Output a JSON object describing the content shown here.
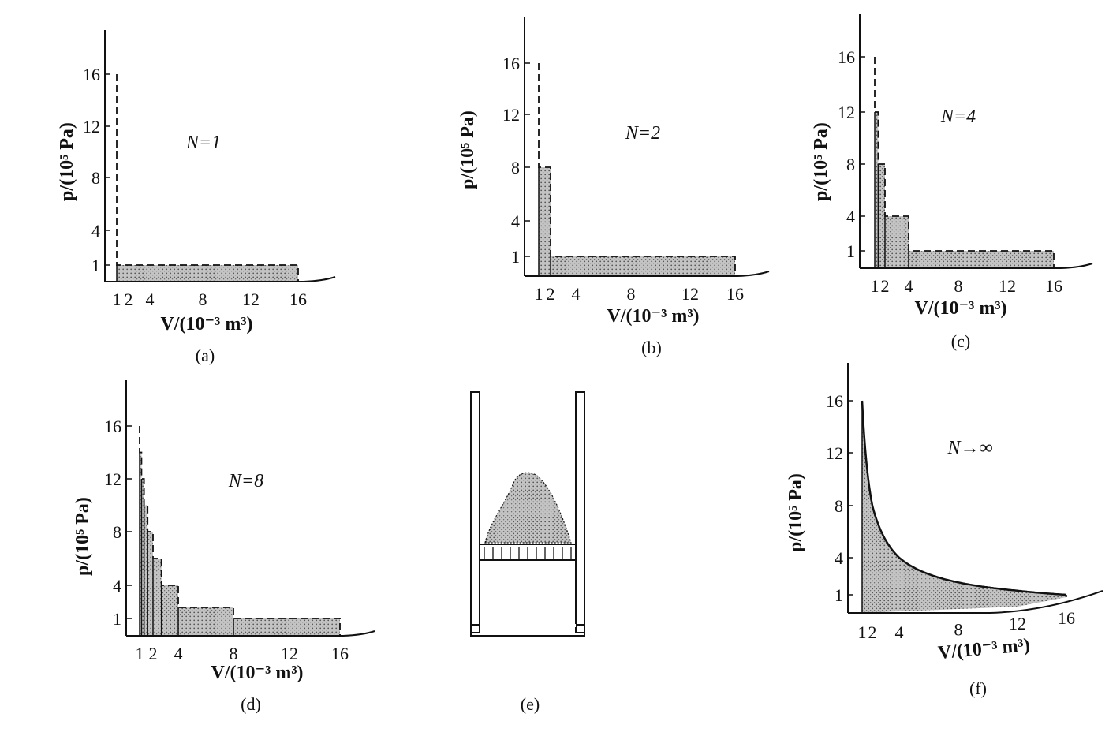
{
  "colors": {
    "ink": "#111111",
    "fill": "#b8b8b8",
    "paper": "#ffffff"
  },
  "chart_data": [
    {
      "type": "area",
      "panel": "(a)",
      "annotation": "N=1",
      "x_label": "V/(10⁻³ m³)",
      "y_label": "p/(10⁵ Pa)",
      "x_ticks": [
        "1",
        "2",
        "4",
        "8",
        "12",
        "16"
      ],
      "y_ticks": [
        "16",
        "12",
        "8",
        "4",
        "1"
      ],
      "curve": "isotherm pV = 16",
      "steps": [
        [
          16,
          1
        ]
      ]
    },
    {
      "type": "area",
      "panel": "(b)",
      "annotation": "N=2",
      "x_label": "V/(10⁻³ m³)",
      "y_label": "p/(10⁵ Pa)",
      "x_ticks": [
        "1",
        "2",
        "4",
        "8",
        "12",
        "16"
      ],
      "y_ticks": [
        "16",
        "12",
        "8",
        "4",
        "1"
      ],
      "curve": "isotherm pV = 16",
      "steps": [
        [
          2,
          8
        ],
        [
          16,
          1
        ]
      ]
    },
    {
      "type": "area",
      "panel": "(c)",
      "annotation": "N=4",
      "x_label": "V/(10⁻³ m³)",
      "y_label": "p/(10⁵ Pa)",
      "x_ticks": [
        "1",
        "2",
        "4",
        "8",
        "12",
        "16"
      ],
      "y_ticks": [
        "16",
        "12",
        "8",
        "4",
        "1"
      ],
      "curve": "isotherm pV = 16",
      "steps": [
        [
          1.333,
          12
        ],
        [
          2,
          8
        ],
        [
          4,
          4
        ],
        [
          16,
          1
        ]
      ]
    },
    {
      "type": "area",
      "panel": "(d)",
      "annotation": "N=8",
      "x_label": "V/(10⁻³ m³)",
      "y_label": "p/(10⁵ Pa)",
      "x_ticks": [
        "1",
        "2",
        "4",
        "8",
        "12",
        "16"
      ],
      "y_ticks": [
        "16",
        "12",
        "8",
        "4",
        "1"
      ],
      "curve": "isotherm pV = 16",
      "steps": [
        [
          1.143,
          14
        ],
        [
          1.333,
          12
        ],
        [
          1.6,
          10
        ],
        [
          2,
          8
        ],
        [
          2.667,
          6
        ],
        [
          4,
          4
        ],
        [
          8,
          2
        ],
        [
          16,
          1
        ]
      ]
    },
    {
      "type": "diagram",
      "panel": "(e)",
      "description": "cylinder with piston loaded by fine sand"
    },
    {
      "type": "area",
      "panel": "(f)",
      "annotation": "N→∞",
      "x_label": "V/(10⁻³ m³)",
      "y_label": "p/(10⁵ Pa)",
      "x_ticks": [
        "1",
        "2",
        "4",
        "8",
        "12",
        "16"
      ],
      "y_ticks": [
        "16",
        "12",
        "8",
        "4",
        "1"
      ],
      "curve": "isotherm pV = 16",
      "steps": []
    }
  ]
}
